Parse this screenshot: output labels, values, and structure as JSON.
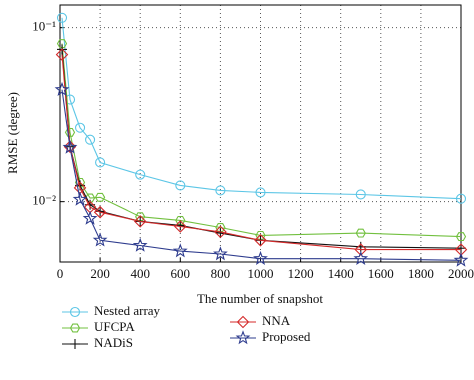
{
  "chart_data": {
    "type": "line",
    "xlabel": "The number of snapshot",
    "ylabel": "RMSE (degree)",
    "x": [
      10,
      50,
      100,
      150,
      200,
      400,
      600,
      800,
      1000,
      1500,
      2000
    ],
    "xlim": [
      0,
      2000
    ],
    "xticks": [
      0,
      200,
      400,
      600,
      800,
      1000,
      1200,
      1400,
      1600,
      1800,
      2000
    ],
    "ylim": [
      0.0045,
      0.135
    ],
    "yticks": [
      {
        "value": 0.01,
        "label": "10⁻²"
      },
      {
        "value": 0.1,
        "label": "10⁻¹"
      }
    ],
    "log_y": true,
    "grid": true,
    "legend": "below",
    "series": [
      {
        "name": "Nested array",
        "color": "#5cc6e6",
        "marker": "circle",
        "values": [
          0.114,
          0.0386,
          0.0266,
          0.0227,
          0.0168,
          0.0143,
          0.0124,
          0.0116,
          0.0113,
          0.011,
          0.0104
        ]
      },
      {
        "name": "UFCPA",
        "color": "#72c03f",
        "marker": "hexagon",
        "values": [
          0.081,
          0.025,
          0.0129,
          0.0105,
          0.0106,
          0.0082,
          0.0078,
          0.0071,
          0.0064,
          0.0066,
          0.0063
        ]
      },
      {
        "name": "NADiS",
        "color": "#111111",
        "marker": "plus",
        "values": [
          0.075,
          0.0207,
          0.0124,
          0.0096,
          0.0088,
          0.0077,
          0.0073,
          0.0066,
          0.006,
          0.0055,
          0.0054
        ]
      },
      {
        "name": "NNA",
        "color": "#d42a2a",
        "marker": "diamond",
        "values": [
          0.07,
          0.0207,
          0.012,
          0.0093,
          0.0087,
          0.0077,
          0.0072,
          0.0067,
          0.006,
          0.0053,
          0.0053
        ]
      },
      {
        "name": "Proposed",
        "color": "#2e3c8e",
        "marker": "star",
        "values": [
          0.044,
          0.0205,
          0.0103,
          0.008,
          0.006,
          0.0056,
          0.0052,
          0.005,
          0.0047,
          0.0047,
          0.0046
        ]
      }
    ]
  }
}
